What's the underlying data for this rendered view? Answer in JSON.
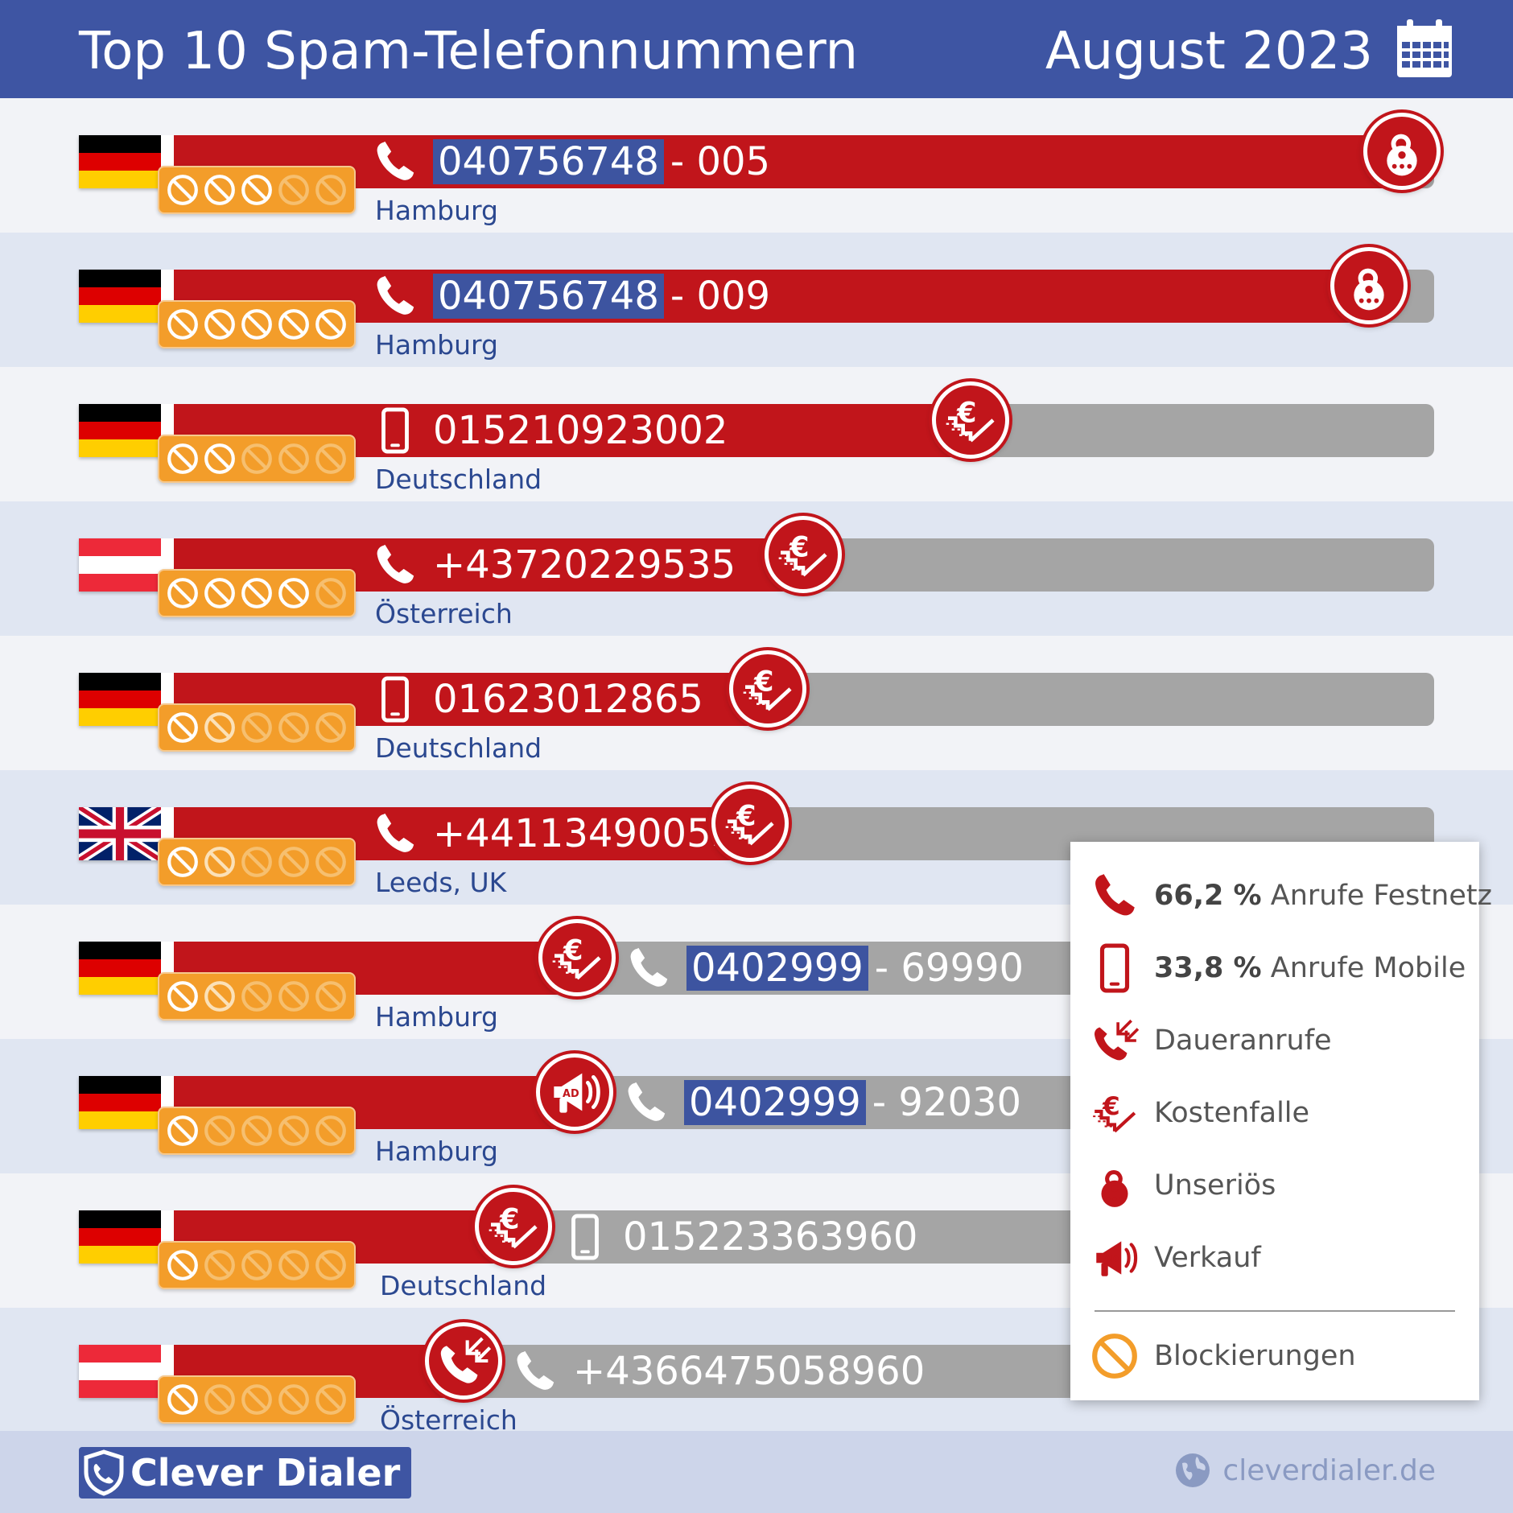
{
  "header": {
    "title": "Top 10 Spam-Telefonnummern",
    "date": "August 2023",
    "calendar_icon": "calendar-icon"
  },
  "colors": {
    "header": "#3e55a3",
    "bar_red": "#c1151b",
    "bar_grey": "#a5a5a5",
    "block_orange": "#f39d2a",
    "number_highlight": "#3d54a0"
  },
  "chart_data": {
    "type": "bar",
    "title": "Top 10 Spam-Telefonnummern",
    "subtitle": "August 2023",
    "max_blocks": 5,
    "categories": [
      "040756748 - 005",
      "040756748 - 009",
      "015210923002",
      "+43720229535",
      "01623012865",
      "+441134900538",
      "0402999 - 69990",
      "0402999 - 92030",
      "015223363960",
      "+4366475058960"
    ],
    "rows": [
      {
        "rank": 1,
        "country": "de",
        "line": "festnetz",
        "prefix": "040756748",
        "suffix": "- 005",
        "number": "",
        "region": "Hamburg",
        "category": "unserioes",
        "value": 1.0,
        "blocks": 3.0
      },
      {
        "rank": 2,
        "country": "de",
        "line": "festnetz",
        "prefix": "040756748",
        "suffix": "- 009",
        "number": "",
        "region": "Hamburg",
        "category": "unserioes",
        "value": 0.974,
        "blocks": 5.0
      },
      {
        "rank": 3,
        "country": "de",
        "line": "mobile",
        "prefix": "",
        "suffix": "",
        "number": "015210923002",
        "region": "Deutschland",
        "category": "kostenfalle",
        "value": 0.661,
        "blocks": 2.0
      },
      {
        "rank": 4,
        "country": "at",
        "line": "festnetz",
        "prefix": "",
        "suffix": "",
        "number": "+43720229535",
        "region": "Österreich",
        "category": "kostenfalle",
        "value": 0.53,
        "blocks": 4.0
      },
      {
        "rank": 5,
        "country": "de",
        "line": "mobile",
        "prefix": "",
        "suffix": "",
        "number": "01623012865",
        "region": "Deutschland",
        "category": "kostenfalle",
        "value": 0.502,
        "blocks": 1.5
      },
      {
        "rank": 6,
        "country": "uk",
        "line": "festnetz",
        "prefix": "",
        "suffix": "",
        "number": "+441134900538",
        "region": "Leeds, UK",
        "category": "kostenfalle",
        "value": 0.488,
        "blocks": 1.5
      },
      {
        "rank": 7,
        "country": "de",
        "line": "festnetz",
        "prefix": "0402999",
        "suffix": "- 69990",
        "number": "",
        "region": "Hamburg",
        "category": "kostenfalle",
        "value": 0.352,
        "blocks": 1.5
      },
      {
        "rank": 8,
        "country": "de",
        "line": "festnetz",
        "prefix": "0402999",
        "suffix": "- 92030",
        "number": "",
        "region": "Hamburg",
        "category": "verkauf",
        "value": 0.35,
        "blocks": 1.0
      },
      {
        "rank": 9,
        "country": "de",
        "line": "mobile",
        "prefix": "",
        "suffix": "",
        "number": "015223363960",
        "region": "Deutschland",
        "category": "kostenfalle",
        "value": 0.302,
        "blocks": 1.0
      },
      {
        "rank": 10,
        "country": "at",
        "line": "festnetz",
        "prefix": "",
        "suffix": "",
        "number": "+4366475058960",
        "region": "Österreich",
        "category": "daueranrufe",
        "value": 0.263,
        "blocks": 1.0
      }
    ]
  },
  "legend": {
    "items": [
      {
        "icon": "phone-icon",
        "pct": "66,2 %",
        "text": "Anrufe Festnetz"
      },
      {
        "icon": "mobile-icon",
        "pct": "33,8 %",
        "text": "Anrufe Mobile"
      },
      {
        "icon": "daueranrufe-icon",
        "pct": "",
        "text": "Daueranrufe"
      },
      {
        "icon": "kostenfalle-icon",
        "pct": "",
        "text": "Kostenfalle"
      },
      {
        "icon": "unserioes-icon",
        "pct": "",
        "text": "Unseriös"
      },
      {
        "icon": "verkauf-icon",
        "pct": "",
        "text": "Verkauf"
      },
      {
        "icon": "blocked-icon",
        "pct": "",
        "text": "Blockierungen"
      }
    ]
  },
  "footer": {
    "brand": "Clever Dialer",
    "website": "cleverdialer.de"
  }
}
